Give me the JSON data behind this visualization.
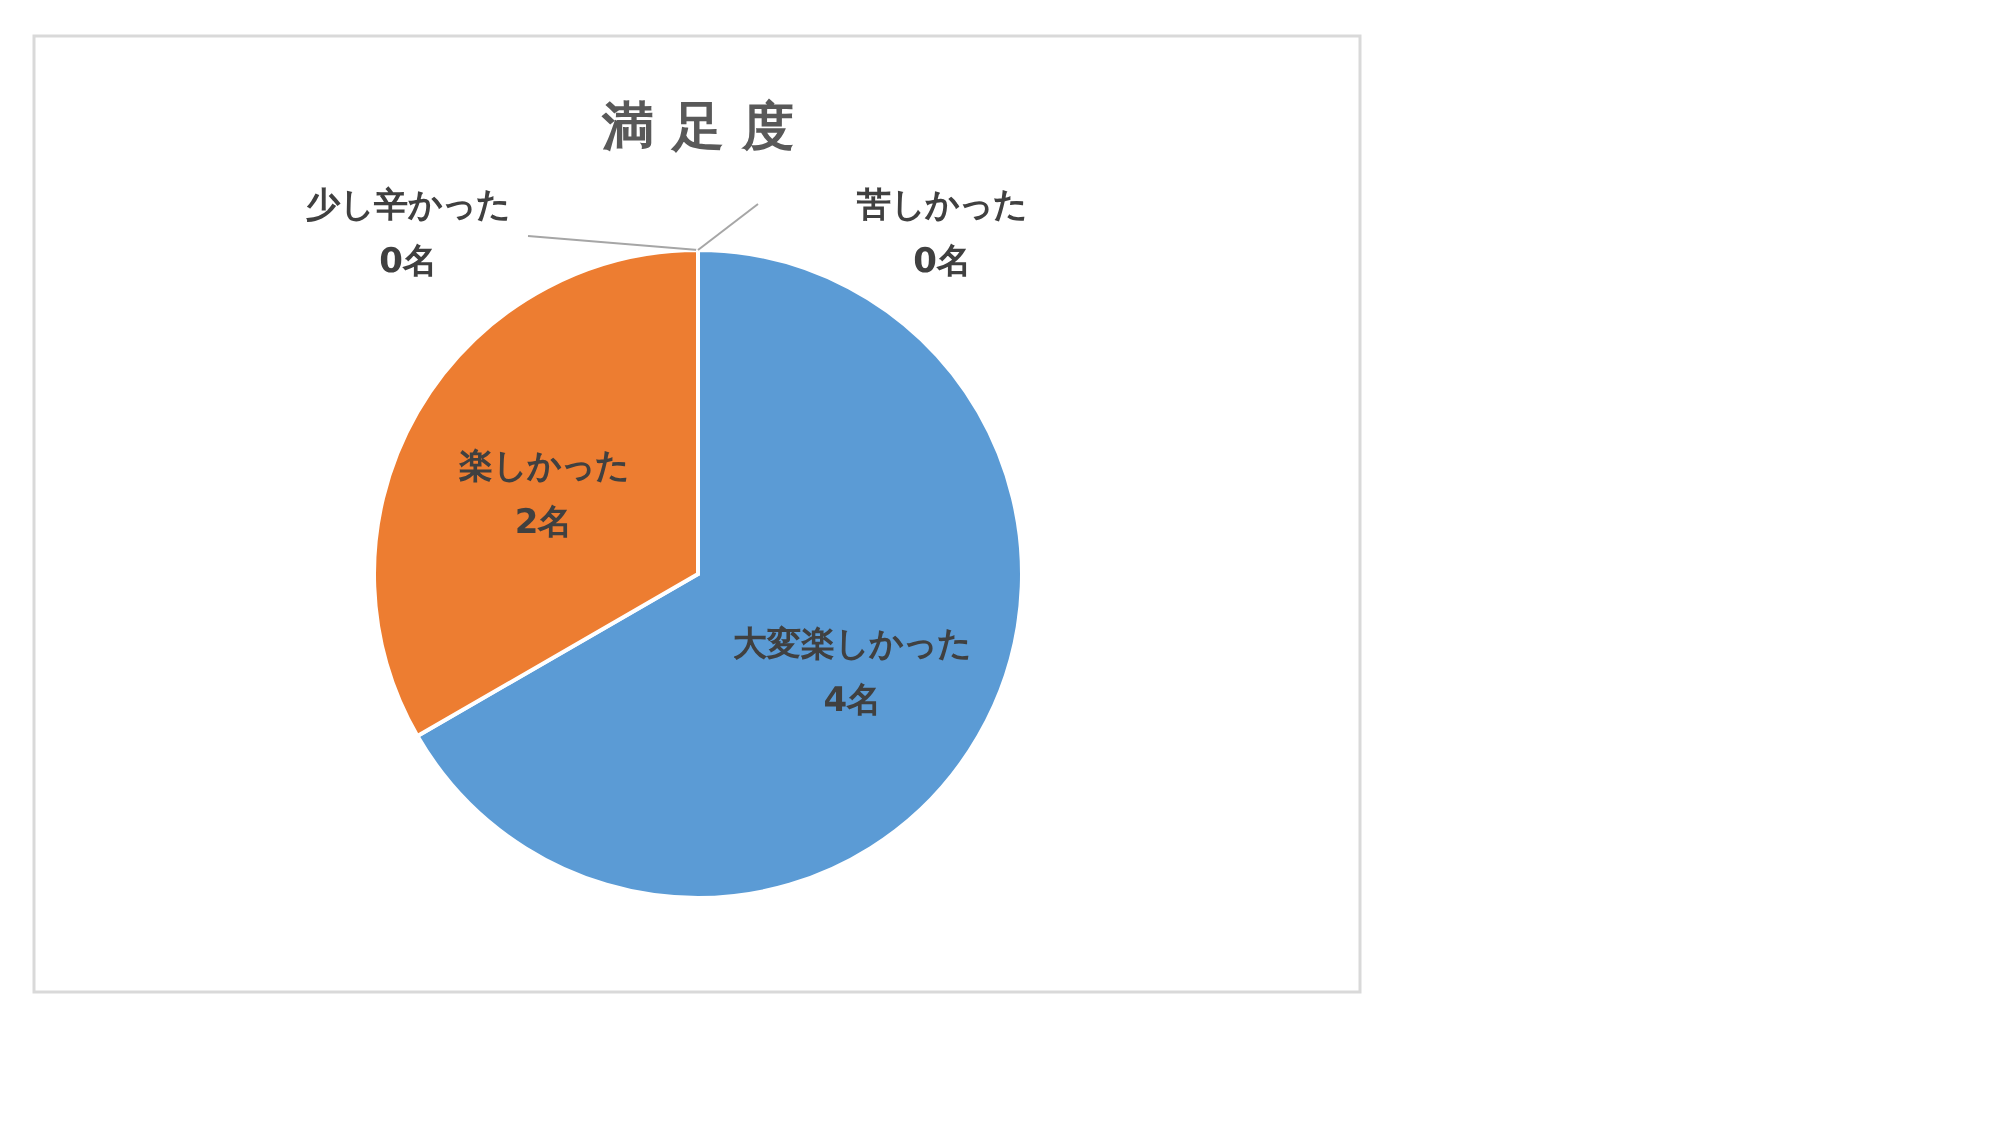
{
  "chart_data": {
    "type": "pie",
    "title": "満 足 度",
    "categories": [
      "大変楽しかった",
      "楽しかった",
      "少し辛かった",
      "苦しかった"
    ],
    "values": [
      4,
      2,
      0,
      0
    ],
    "colors": [
      "#5b9bd5",
      "#ed7d31",
      "#a5a5a5",
      "#ffc000"
    ],
    "value_labels": [
      "4名",
      "2名",
      "0名",
      "0名"
    ]
  }
}
